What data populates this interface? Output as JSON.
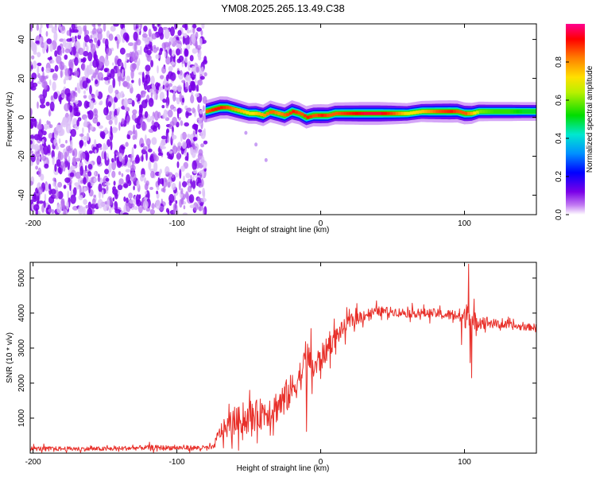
{
  "figure_title": "YM08.2025.265.13.49.C38",
  "chart_data": [
    {
      "type": "heatmap",
      "title": "YM08.2025.265.13.49.C38",
      "xlabel": "Height of straight line (km)",
      "ylabel": "Frequency (Hz)",
      "xlim": [
        -202,
        150
      ],
      "ylim": [
        -50,
        48
      ],
      "xticks": [
        -200,
        -100,
        0,
        100
      ],
      "yticks": [
        -40,
        -20,
        0,
        20,
        40
      ],
      "xtick_labels": [
        "-200",
        "-100",
        "0",
        "100"
      ],
      "ytick_labels": [
        "-40",
        "-20",
        "0",
        "20",
        "40"
      ],
      "noise_region_x": [
        -202,
        -80
      ],
      "ridge": {
        "x": [
          -80,
          -75,
          -70,
          -65,
          -60,
          -55,
          -50,
          -45,
          -40,
          -35,
          -30,
          -25,
          -20,
          -15,
          -10,
          -5,
          0,
          5,
          10,
          20,
          30,
          40,
          50,
          60,
          70,
          80,
          90,
          95,
          100,
          105,
          110,
          120,
          130,
          140,
          150
        ],
        "frequency": [
          3,
          4,
          5,
          5,
          4,
          3,
          2,
          2,
          1,
          3,
          2,
          1,
          3,
          2,
          0,
          1,
          1,
          1,
          2,
          2,
          2,
          2,
          2,
          2,
          3,
          3,
          3,
          3,
          2,
          2,
          3,
          3,
          3,
          3,
          3
        ],
        "amplitude": [
          0.85,
          0.9,
          0.9,
          0.85,
          0.8,
          0.75,
          0.7,
          0.75,
          0.8,
          0.85,
          0.8,
          0.85,
          0.9,
          0.85,
          0.9,
          0.85,
          0.9,
          0.85,
          0.85,
          0.9,
          0.95,
          0.95,
          0.85,
          0.7,
          0.75,
          0.85,
          0.9,
          0.85,
          0.85,
          0.75,
          0.6,
          0.55,
          0.55,
          0.5,
          0.5
        ]
      },
      "colorbar": {
        "label": "Normalized spectral amplitude",
        "range": [
          0,
          1
        ],
        "ticks": [
          "0.0",
          "0.2",
          "0.4",
          "0.6",
          "0.8"
        ],
        "colormap": "rainbow"
      }
    },
    {
      "type": "line",
      "xlabel": "Height of straight line (km)",
      "ylabel": "SNR (10 * v/v)",
      "xlim": [
        -202,
        150
      ],
      "ylim": [
        0,
        5450
      ],
      "xticks": [
        -200,
        -100,
        0,
        100
      ],
      "yticks": [
        1000,
        2000,
        3000,
        4000,
        5000
      ],
      "xtick_labels": [
        "-200",
        "-100",
        "0",
        "100"
      ],
      "ytick_labels": [
        "1000",
        "2000",
        "3000",
        "4000",
        "5000"
      ],
      "series": [
        {
          "name": "SNR",
          "color": "#e8302a",
          "x": [
            -202,
            -150,
            -120,
            -90,
            -75,
            -70,
            -60,
            -50,
            -40,
            -30,
            -20,
            -12,
            -10,
            -5,
            0,
            10,
            20,
            30,
            40,
            50,
            60,
            70,
            80,
            85,
            90,
            95,
            100,
            103,
            105,
            110,
            120,
            130,
            140,
            150
          ],
          "y": [
            130,
            120,
            160,
            150,
            150,
            600,
            900,
            1000,
            1150,
            1350,
            1800,
            2400,
            2800,
            2400,
            2700,
            3300,
            3750,
            3950,
            4050,
            4050,
            4000,
            4000,
            4000,
            3950,
            3950,
            3950,
            3850,
            4200,
            3500,
            3800,
            3700,
            3650,
            3600,
            3600
          ],
          "noise_amplitude": [
            90,
            90,
            100,
            100,
            100,
            350,
            550,
            600,
            650,
            700,
            700,
            650,
            700,
            650,
            550,
            400,
            300,
            250,
            200,
            180,
            180,
            180,
            180,
            200,
            220,
            260,
            420,
            900,
            800,
            300,
            200,
            160,
            140,
            140
          ],
          "spikes": [
            {
              "x": 103,
              "y": 5400
            },
            {
              "x": 105,
              "y": 2150
            },
            {
              "x": 98,
              "y": 3100
            },
            {
              "x": -10,
              "y": 3550
            },
            {
              "x": -10,
              "y": 620
            }
          ]
        }
      ]
    }
  ]
}
